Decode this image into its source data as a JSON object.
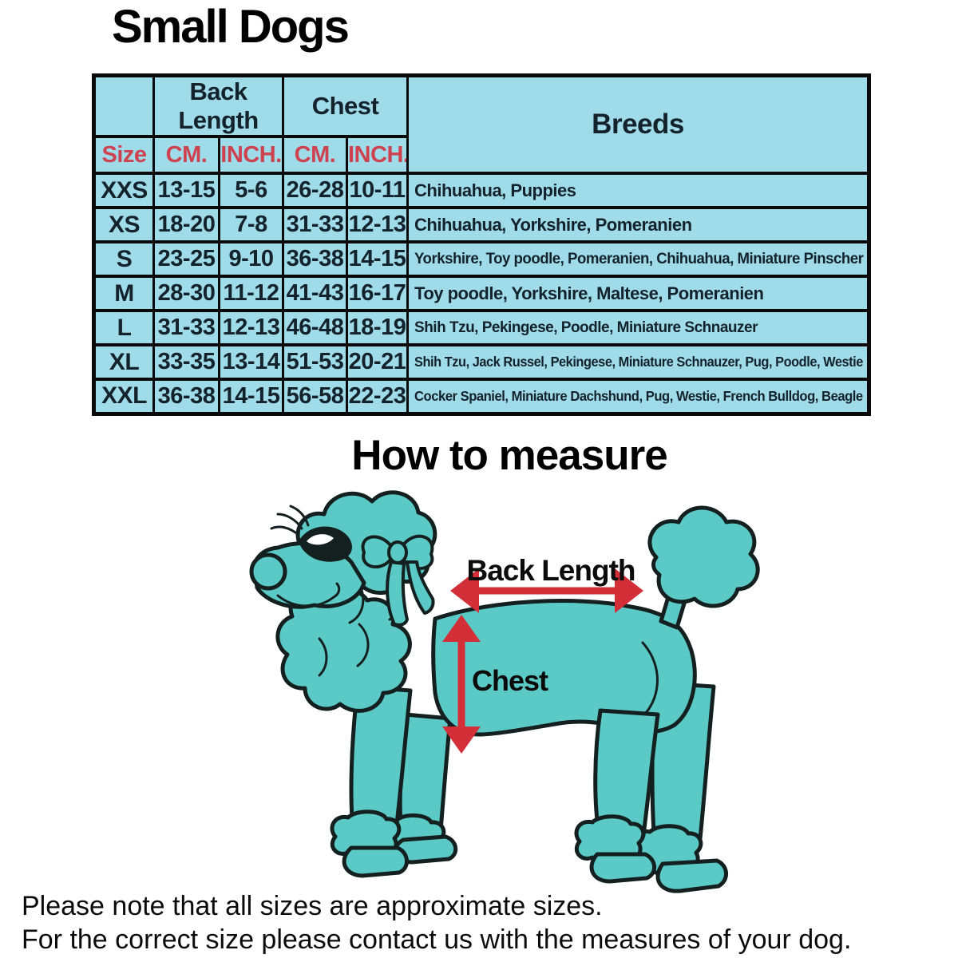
{
  "page": {
    "title": "Small Dogs",
    "section2_title": "How to measure",
    "note_line1": "Please note that all sizes are approximate sizes.",
    "note_line2": "For the correct size please contact us with the measures of your dog."
  },
  "size_table": {
    "group_headers": {
      "back_length": "Back Length",
      "chest": "Chest",
      "breeds": "Breeds"
    },
    "column_headers": {
      "size": "Size",
      "back_cm": "CM.",
      "back_inch": "INCH.",
      "chest_cm": "CM.",
      "chest_inch": "INCH."
    },
    "rows": [
      {
        "size": "XXS",
        "back_cm": "13-15",
        "back_inch": "5-6",
        "chest_cm": "26-28",
        "chest_inch": "10-11",
        "breeds": "Chihuahua, Puppies"
      },
      {
        "size": "XS",
        "back_cm": "18-20",
        "back_inch": "7-8",
        "chest_cm": "31-33",
        "chest_inch": "12-13",
        "breeds": "Chihuahua, Yorkshire, Pomeranien"
      },
      {
        "size": "S",
        "back_cm": "23-25",
        "back_inch": "9-10",
        "chest_cm": "36-38",
        "chest_inch": "14-15",
        "breeds": "Yorkshire, Toy poodle, Pomeranien, Chihuahua, Miniature Pinscher"
      },
      {
        "size": "M",
        "back_cm": "28-30",
        "back_inch": "11-12",
        "chest_cm": "41-43",
        "chest_inch": "16-17",
        "breeds": "Toy poodle, Yorkshire, Maltese, Pomeranien"
      },
      {
        "size": "L",
        "back_cm": "31-33",
        "back_inch": "12-13",
        "chest_cm": "46-48",
        "chest_inch": "18-19",
        "breeds": "Shih Tzu, Pekingese, Poodle, Miniature Schnauzer"
      },
      {
        "size": "XL",
        "back_cm": "33-35",
        "back_inch": "13-14",
        "chest_cm": "51-53",
        "chest_inch": "20-21",
        "breeds": "Shih Tzu, Jack Russel, Pekingese, Miniature Schnauzer, Pug, Poodle, Westie"
      },
      {
        "size": "XXL",
        "back_cm": "36-38",
        "back_inch": "14-15",
        "chest_cm": "56-58",
        "chest_inch": "22-23",
        "breeds": "Cocker Spaniel, Miniature Dachshund, Pug, Westie, French Bulldog, Beagle"
      }
    ]
  },
  "diagram": {
    "back_length_label": "Back Length",
    "chest_label": "Chest"
  },
  "colors": {
    "page_bg": "#ffffff",
    "table_bg": "#9fdbe8",
    "table_border": "#0a0a0a",
    "table_text": "#13222b",
    "header_red": "#ce4250",
    "poodle_teal": "#5bc9c5",
    "outline_ink": "#13201f",
    "arrow_red": "#d22f38",
    "title_black": "#000000"
  }
}
